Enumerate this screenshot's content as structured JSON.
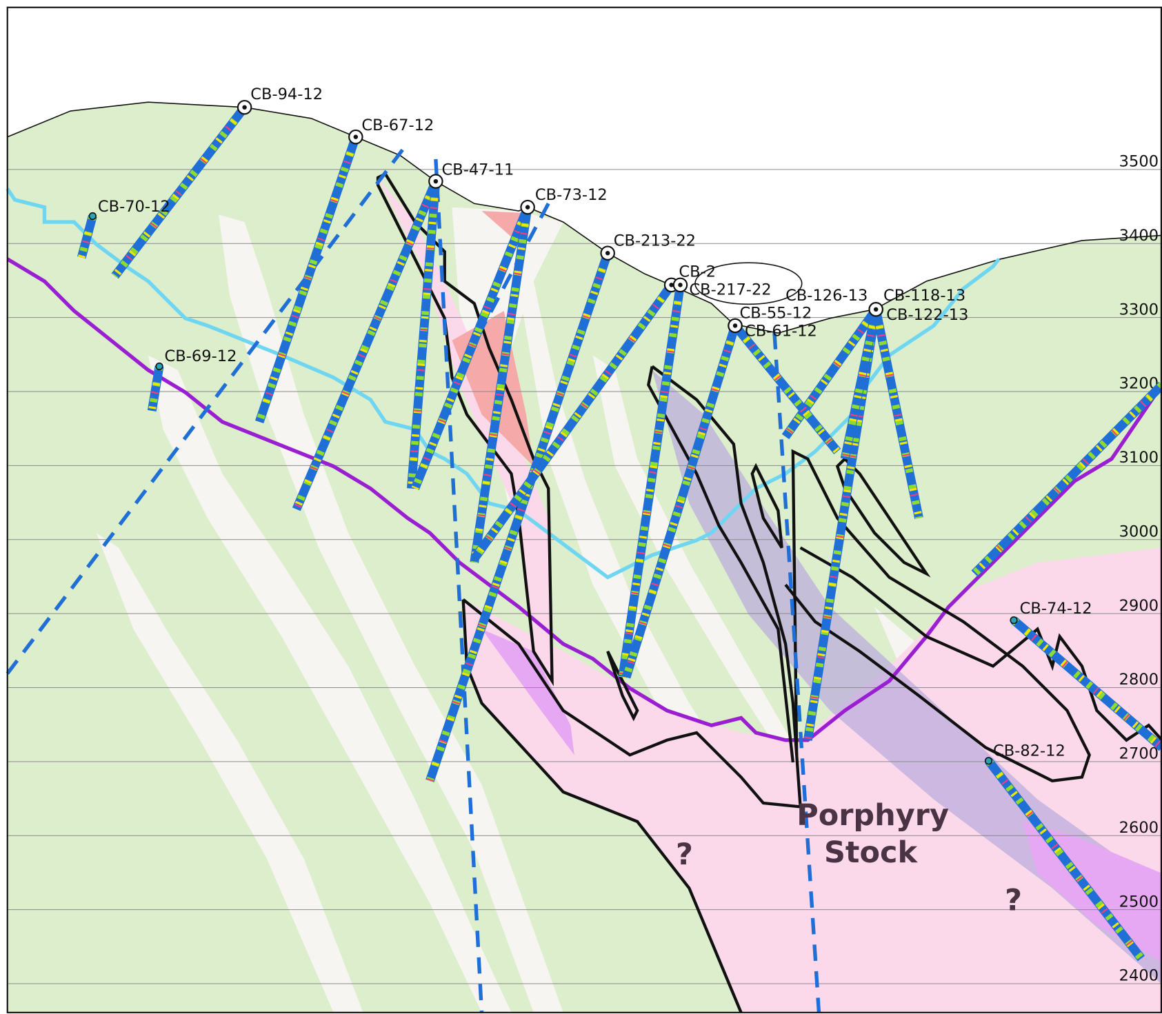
{
  "drill_holes": [
    {
      "label": "CB-94-12"
    },
    {
      "label": "CB-67-12"
    },
    {
      "label": "CB-47-11"
    },
    {
      "label": "CB-70-12"
    },
    {
      "label": "CB-69-12"
    },
    {
      "label": "CB-73-12"
    },
    {
      "label": "CB-213-22"
    },
    {
      "label": "CB-2"
    },
    {
      "label": "CB-217-22"
    },
    {
      "label": "CB-126-13"
    },
    {
      "label": "CB-118-13"
    },
    {
      "label": "CB-122-13"
    },
    {
      "label": "CB-55-12"
    },
    {
      "label": "CB-61-12"
    },
    {
      "label": "CB-74-12"
    },
    {
      "label": "CB-82-12"
    }
  ],
  "elevations": [
    3500,
    3400,
    3300,
    3200,
    3100,
    3000,
    2900,
    2800,
    2700,
    2600,
    2500,
    2400
  ],
  "annotations": {
    "stock": [
      "Porphyry",
      "Stock"
    ],
    "unknown": [
      "?",
      "?"
    ]
  }
}
